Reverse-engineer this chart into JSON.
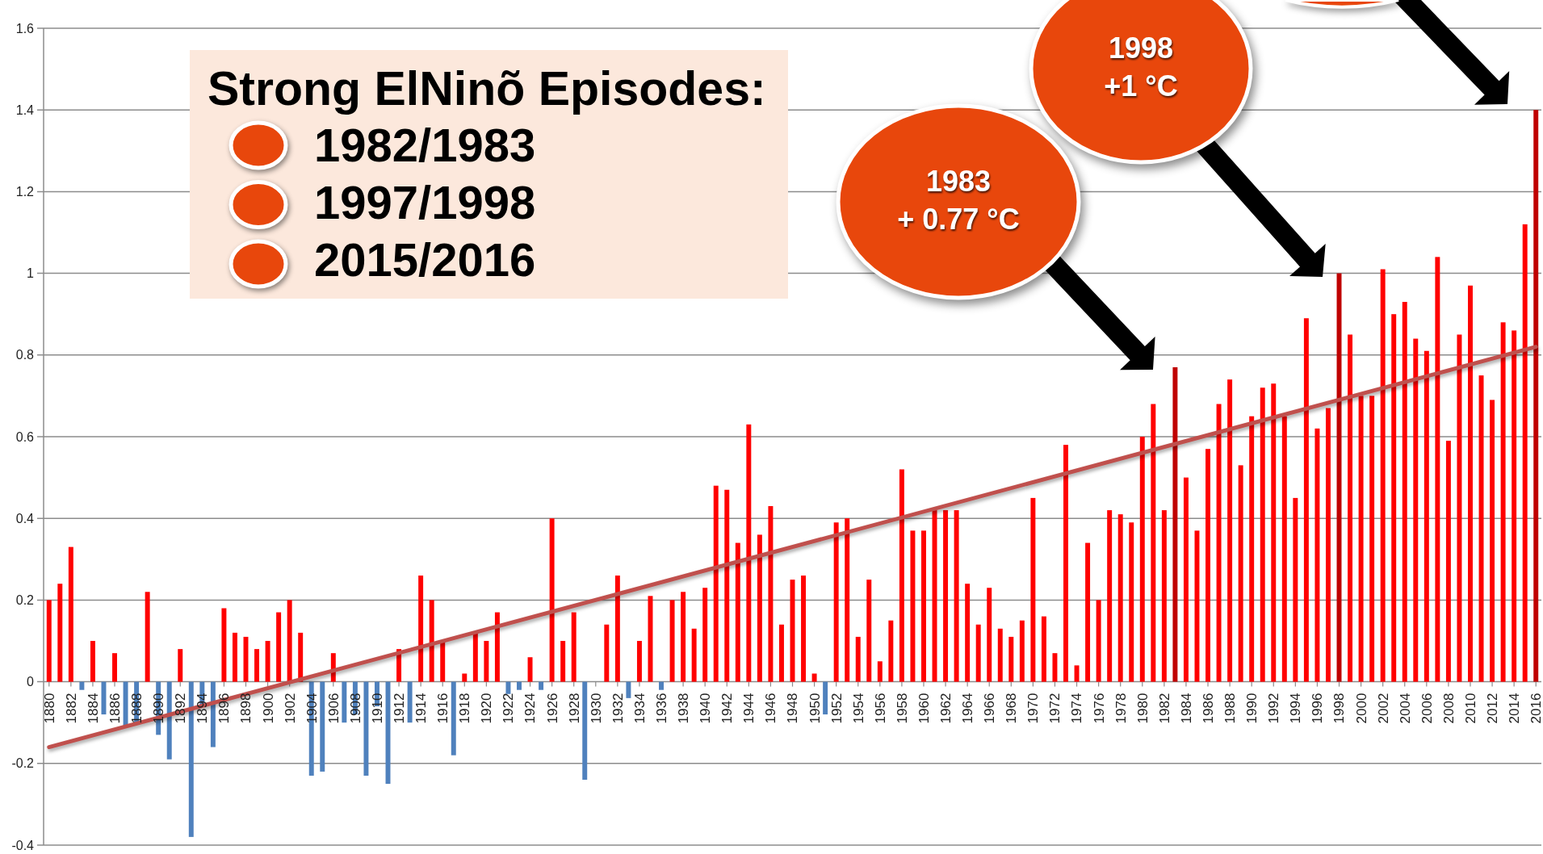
{
  "chart_data": {
    "type": "bar",
    "x": [
      1880,
      1881,
      1882,
      1883,
      1884,
      1885,
      1886,
      1887,
      1888,
      1889,
      1890,
      1891,
      1892,
      1893,
      1894,
      1895,
      1896,
      1897,
      1898,
      1899,
      1900,
      1901,
      1902,
      1903,
      1904,
      1905,
      1906,
      1907,
      1908,
      1909,
      1910,
      1911,
      1912,
      1913,
      1914,
      1915,
      1916,
      1917,
      1918,
      1919,
      1920,
      1921,
      1922,
      1923,
      1924,
      1925,
      1926,
      1927,
      1928,
      1929,
      1931,
      1932,
      1933,
      1934,
      1935,
      1936,
      1937,
      1938,
      1939,
      1940,
      1941,
      1942,
      1943,
      1944,
      1945,
      1946,
      1947,
      1948,
      1949,
      1950,
      1951,
      1952,
      1953,
      1954,
      1955,
      1956,
      1957,
      1958,
      1959,
      1960,
      1961,
      1962,
      1963,
      1964,
      1965,
      1966,
      1967,
      1968,
      1969,
      1970,
      1971,
      1972,
      1973,
      1974,
      1975,
      1976,
      1977,
      1978,
      1979,
      1980,
      1981,
      1982,
      1983,
      1984,
      1985,
      1986,
      1987,
      1988,
      1989,
      1990,
      1991,
      1992,
      1993,
      1994,
      1995,
      1996,
      1997,
      1998,
      1999,
      2000,
      2001,
      2002,
      2003,
      2004,
      2005,
      2006,
      2007,
      2008,
      2009,
      2010,
      2011,
      2012,
      2013,
      2014,
      2015,
      2016
    ],
    "series": [
      {
        "values": [
          0.2,
          0.24,
          0.33,
          -0.02,
          0.1,
          -0.08,
          0.07,
          -0.11,
          -0.1,
          0.22,
          -0.13,
          -0.19,
          0.08,
          -0.38,
          -0.06,
          -0.16,
          0.18,
          0.12,
          0.11,
          0.08,
          0.1,
          0.17,
          0.2,
          0.12,
          -0.23,
          -0.22,
          0.07,
          -0.1,
          -0.08,
          -0.23,
          -0.06,
          -0.25,
          0.08,
          -0.1,
          0.26,
          0.2,
          0.1,
          -0.18,
          0.02,
          0.12,
          0.1,
          0.17,
          -0.03,
          -0.02,
          0.06,
          -0.02,
          0.4,
          0.1,
          0.17,
          -0.24,
          0.14,
          0.26,
          -0.04,
          0.1,
          0.21,
          -0.02,
          0.2,
          0.22,
          0.13,
          0.23,
          0.48,
          0.47,
          0.34,
          0.63,
          0.36,
          0.43,
          0.14,
          0.25,
          0.26,
          0.02,
          -0.08,
          0.39,
          0.4,
          0.11,
          0.25,
          0.05,
          0.15,
          0.52,
          0.37,
          0.37,
          0.42,
          0.42,
          0.42,
          0.24,
          0.14,
          0.23,
          0.13,
          0.11,
          0.15,
          0.45,
          0.16,
          0.07,
          0.58,
          0.04,
          0.34,
          0.2,
          0.42,
          0.41,
          0.39,
          0.6,
          0.68,
          0.42,
          0.77,
          0.5,
          0.37,
          0.57,
          0.68,
          0.74,
          0.53,
          0.65,
          0.72,
          0.73,
          0.65,
          0.45,
          0.89,
          0.62,
          0.67,
          1.0,
          0.85,
          0.7,
          0.7,
          1.01,
          0.9,
          0.93,
          0.84,
          0.81,
          1.04,
          0.59,
          0.85,
          0.97,
          0.75,
          0.69,
          0.88,
          0.86,
          1.12,
          1.4
        ],
        "colors": [
          "#ff0000",
          "#ff0000",
          "#ff0000",
          "#4f81bd",
          "#ff0000",
          "#4f81bd",
          "#ff0000",
          "#4f81bd",
          "#4f81bd",
          "#ff0000",
          "#4f81bd",
          "#4f81bd",
          "#ff0000",
          "#4f81bd",
          "#4f81bd",
          "#4f81bd",
          "#ff0000",
          "#ff0000",
          "#ff0000",
          "#ff0000",
          "#ff0000",
          "#ff0000",
          "#ff0000",
          "#ff0000",
          "#4f81bd",
          "#4f81bd",
          "#ff0000",
          "#4f81bd",
          "#4f81bd",
          "#4f81bd",
          "#4f81bd",
          "#4f81bd",
          "#ff0000",
          "#4f81bd",
          "#ff0000",
          "#ff0000",
          "#ff0000",
          "#4f81bd",
          "#ff0000",
          "#ff0000",
          "#ff0000",
          "#ff0000",
          "#4f81bd",
          "#4f81bd",
          "#ff0000",
          "#4f81bd",
          "#ff0000",
          "#ff0000",
          "#ff0000",
          "#4f81bd",
          "#ff0000",
          "#ff0000",
          "#4f81bd",
          "#ff0000",
          "#ff0000",
          "#4f81bd",
          "#ff0000",
          "#ff0000",
          "#ff0000",
          "#ff0000",
          "#ff0000",
          "#ff0000",
          "#ff0000",
          "#ff0000",
          "#ff0000",
          "#ff0000",
          "#ff0000",
          "#ff0000",
          "#ff0000",
          "#ff0000",
          "#4f81bd",
          "#ff0000",
          "#ff0000",
          "#ff0000",
          "#ff0000",
          "#ff0000",
          "#ff0000",
          "#ff0000",
          "#ff0000",
          "#ff0000",
          "#ff0000",
          "#ff0000",
          "#ff0000",
          "#ff0000",
          "#ff0000",
          "#ff0000",
          "#ff0000",
          "#ff0000",
          "#ff0000",
          "#ff0000",
          "#ff0000",
          "#ff0000",
          "#ff0000",
          "#ff0000",
          "#ff0000",
          "#ff0000",
          "#ff0000",
          "#ff0000",
          "#ff0000",
          "#ff0000",
          "#ff0000",
          "#ff0000",
          "#c00000",
          "#ff0000",
          "#ff0000",
          "#ff0000",
          "#ff0000",
          "#ff0000",
          "#ff0000",
          "#ff0000",
          "#ff0000",
          "#ff0000",
          "#ff0000",
          "#ff0000",
          "#ff0000",
          "#ff0000",
          "#ff0000",
          "#c00000",
          "#ff0000",
          "#ff0000",
          "#ff0000",
          "#ff0000",
          "#ff0000",
          "#ff0000",
          "#ff0000",
          "#ff0000",
          "#ff0000",
          "#ff0000",
          "#ff0000",
          "#ff0000",
          "#ff0000",
          "#ff0000",
          "#ff0000",
          "#ff0000",
          "#ff0000",
          "#c00000"
        ]
      },
      {
        "type": "line",
        "x": [
          1880,
          2016
        ],
        "values": [
          -0.16,
          0.82
        ],
        "color": "#c0504d"
      }
    ],
    "xlim": [
      1879.5,
      2016.5
    ],
    "xticks": [
      1880,
      1882,
      1884,
      1886,
      1888,
      1890,
      1892,
      1894,
      1896,
      1898,
      1900,
      1902,
      1904,
      1906,
      1908,
      1910,
      1912,
      1914,
      1916,
      1918,
      1920,
      1922,
      1924,
      1926,
      1928,
      1930,
      1932,
      1934,
      1936,
      1938,
      1940,
      1942,
      1944,
      1946,
      1948,
      1950,
      1952,
      1954,
      1956,
      1958,
      1960,
      1962,
      1964,
      1966,
      1968,
      1970,
      1972,
      1974,
      1976,
      1978,
      1980,
      1982,
      1984,
      1986,
      1988,
      1990,
      1992,
      1994,
      1996,
      1998,
      2000,
      2002,
      2004,
      2006,
      2008,
      2010,
      2012,
      2014,
      2016
    ],
    "ylim": [
      -0.4,
      1.6
    ],
    "yticks": [
      -0.4,
      -0.2,
      0,
      0.2,
      0.4,
      0.6,
      0.8,
      1,
      1.2,
      1.4,
      1.6
    ],
    "grid": "y",
    "annotations": [
      "Strong ElNinõ Episodes:",
      "1982/1983",
      "1997/1998",
      "2015/2016",
      "1983\n+ 0.77 °C",
      "1998\n+1 °C"
    ]
  }
}
